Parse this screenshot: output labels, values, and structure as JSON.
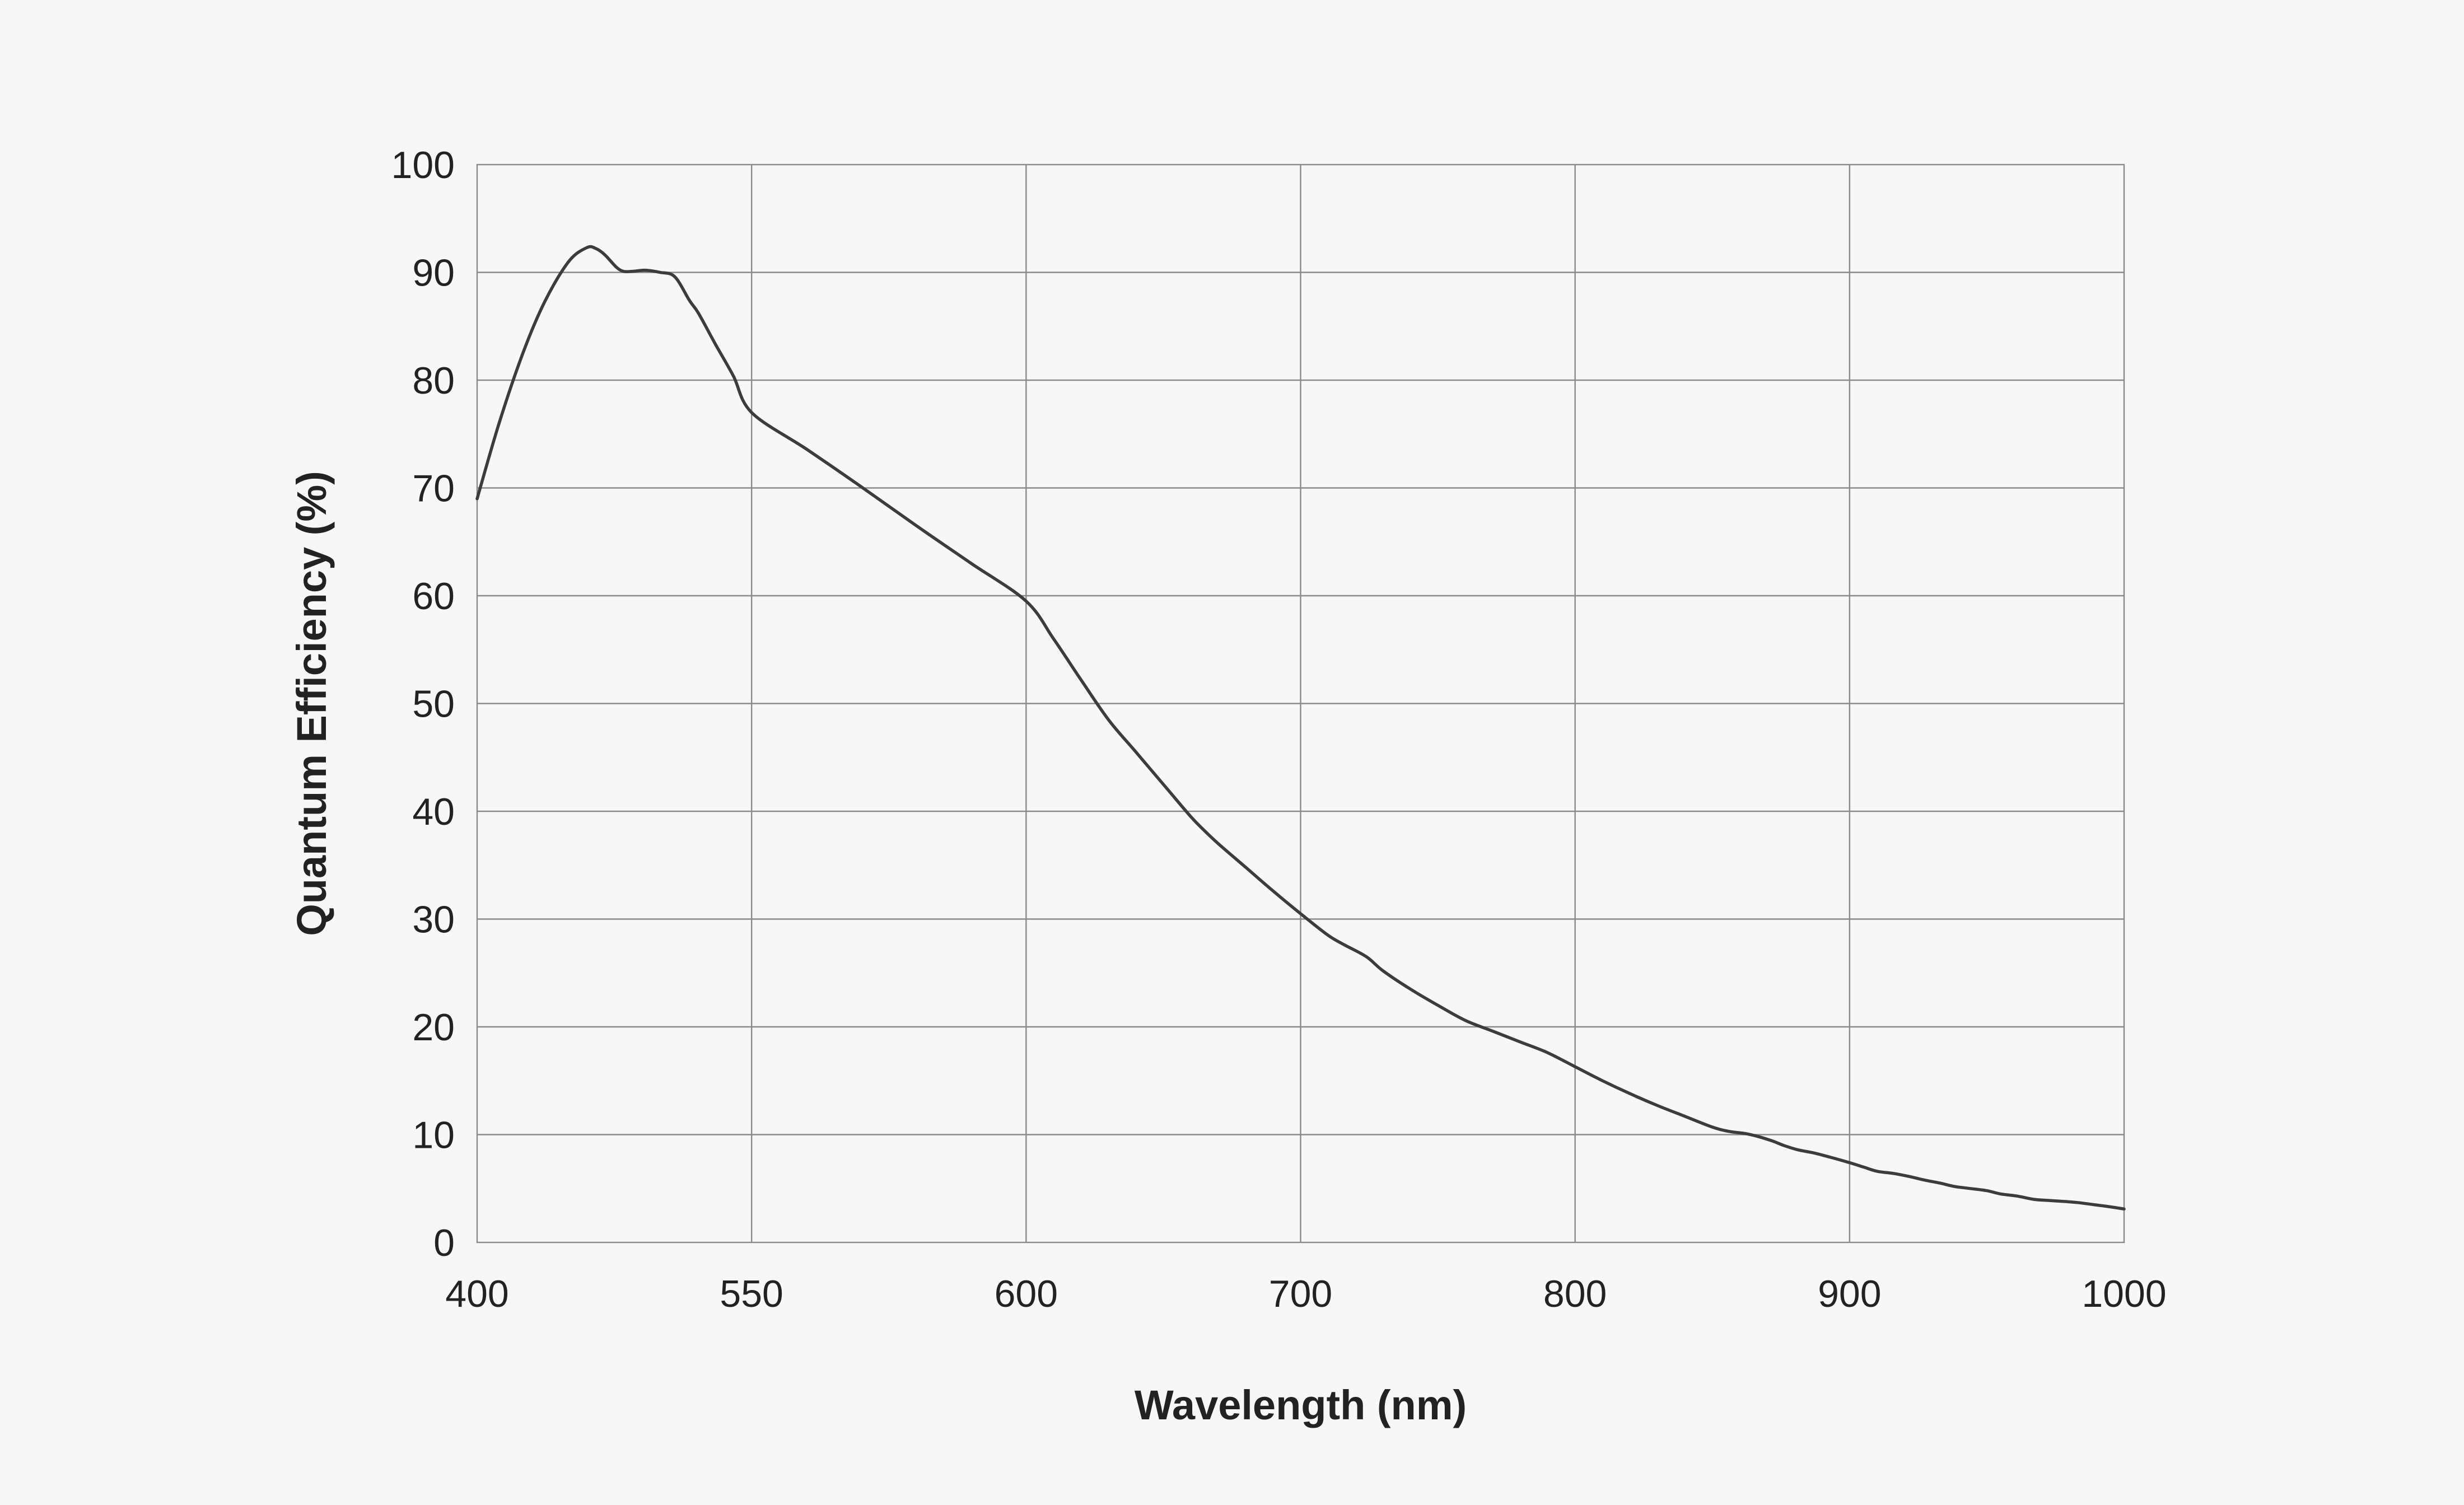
{
  "chart_data": {
    "type": "line",
    "title": "",
    "xlabel": "Wavelength (nm)",
    "ylabel": "Quantum Efficiency (%)",
    "x_tick_labels": [
      "400",
      "550",
      "600",
      "700",
      "800",
      "900",
      "1000"
    ],
    "y_tick_labels": [
      "0",
      "10",
      "20",
      "30",
      "40",
      "50",
      "60",
      "70",
      "80",
      "90",
      "100"
    ],
    "ylim": [
      0,
      100
    ],
    "grid": true,
    "legend": "none",
    "line_color": "#3c3c3c",
    "series": [
      {
        "x": [
          400,
          412,
          425,
          437,
          450,
          460,
          465,
          470,
          476,
          480,
          485,
          492,
          500,
          508,
          516,
          521,
          530,
          540,
          550,
          560,
          570,
          580,
          590,
          600,
          610,
          620,
          630,
          640,
          650,
          660,
          665,
          670,
          680,
          690,
          700,
          710,
          716,
          724,
          730,
          740,
          750,
          760,
          770,
          780,
          790,
          800,
          810,
          820,
          830,
          840,
          850,
          856,
          862,
          867,
          872,
          876,
          881,
          887,
          893,
          900,
          905,
          910,
          916,
          922,
          927,
          933,
          938,
          944,
          950,
          955,
          961,
          967,
          972,
          978,
          983,
          989,
          995,
          1000
        ],
        "y": [
          69,
          76,
          82.5,
          87.3,
          91,
          92.3,
          92.2,
          91.6,
          90.5,
          90.1,
          90.1,
          90.2,
          90.0,
          89.6,
          87.4,
          86.2,
          83.4,
          80.4,
          77.0,
          73.6,
          70.1,
          66.5,
          63.0,
          59.5,
          56.0,
          52.2,
          48.5,
          45.5,
          42.5,
          39.5,
          38.2,
          37.0,
          34.8,
          32.6,
          30.5,
          28.5,
          27.6,
          26.5,
          25.2,
          23.5,
          22.0,
          20.6,
          19.6,
          18.6,
          17.6,
          16.3,
          15.0,
          13.8,
          12.7,
          11.7,
          10.7,
          10.3,
          10.1,
          9.8,
          9.4,
          9.0,
          8.6,
          8.3,
          7.9,
          7.4,
          7.0,
          6.6,
          6.4,
          6.1,
          5.8,
          5.5,
          5.2,
          5.0,
          4.8,
          4.5,
          4.3,
          4.0,
          3.9,
          3.8,
          3.7,
          3.5,
          3.3,
          3.1
        ]
      }
    ]
  }
}
